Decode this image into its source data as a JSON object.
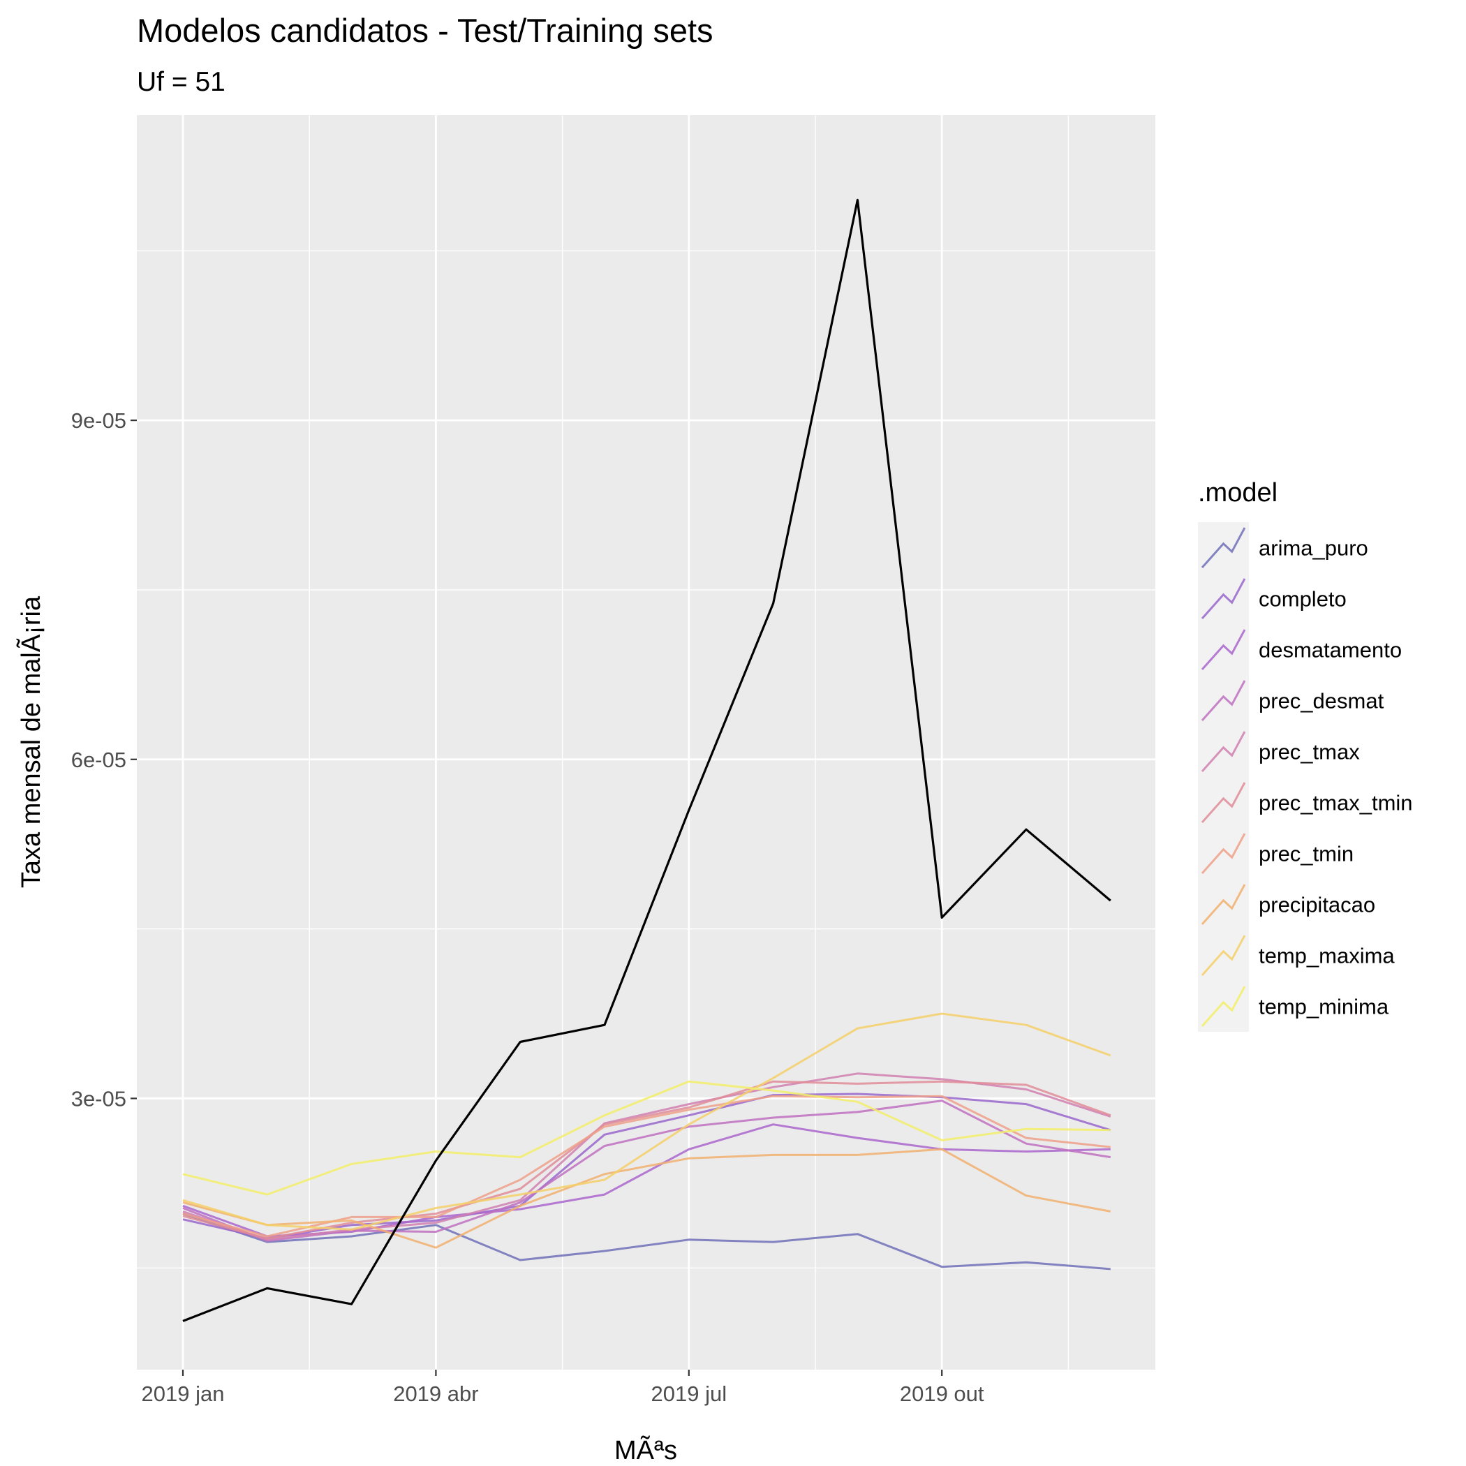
{
  "chart_data": {
    "type": "line",
    "title": "Modelos candidatos - Test/Training sets",
    "subtitle": "Uf = 51",
    "xlabel": "MÃªs",
    "ylabel": "Taxa mensal de malÃ¡ria",
    "x": [
      "2019-01",
      "2019-02",
      "2019-03",
      "2019-04",
      "2019-05",
      "2019-06",
      "2019-07",
      "2019-08",
      "2019-09",
      "2019-10",
      "2019-11",
      "2019-12"
    ],
    "x_ticks": [
      {
        "label": "2019 jan",
        "index": 0
      },
      {
        "label": "2019 abr",
        "index": 3
      },
      {
        "label": "2019 jul",
        "index": 6
      },
      {
        "label": "2019 out",
        "index": 9
      }
    ],
    "y_ticks": [
      {
        "label": "3e-05",
        "value": 3e-05
      },
      {
        "label": "6e-05",
        "value": 6e-05
      },
      {
        "label": "9e-05",
        "value": 9e-05
      }
    ],
    "ylim": [
      6e-06,
      0.000117
    ],
    "grid": true,
    "legend_title": ".model",
    "legend_position": "right",
    "actual": {
      "color": "#000000",
      "values": [
        1.03e-05,
        1.32e-05,
        1.18e-05,
        2.45e-05,
        3.5e-05,
        3.65e-05,
        5.55e-05,
        7.38e-05,
        0.0001095,
        4.6e-05,
        5.38e-05,
        4.75e-05
      ]
    },
    "series": [
      {
        "name": "arima_puro",
        "color": "#7070b8",
        "values": [
          1.98e-05,
          1.73e-05,
          1.78e-05,
          1.88e-05,
          1.57e-05,
          1.65e-05,
          1.75e-05,
          1.73e-05,
          1.8e-05,
          1.51e-05,
          1.55e-05,
          1.49e-05
        ]
      },
      {
        "name": "completo",
        "color": "#9966cc",
        "values": [
          1.93e-05,
          1.76e-05,
          1.88e-05,
          1.92e-05,
          2.05e-05,
          2.68e-05,
          2.85e-05,
          3.03e-05,
          3.04e-05,
          3.01e-05,
          2.95e-05,
          2.72e-05
        ]
      },
      {
        "name": "desmatamento",
        "color": "#aa66cc",
        "values": [
          2.05e-05,
          1.78e-05,
          1.82e-05,
          1.95e-05,
          2.02e-05,
          2.15e-05,
          2.55e-05,
          2.77e-05,
          2.65e-05,
          2.55e-05,
          2.53e-05,
          2.55e-05
        ]
      },
      {
        "name": "prec_desmat",
        "color": "#c070c0",
        "values": [
          2.03e-05,
          1.74e-05,
          1.83e-05,
          1.82e-05,
          2.08e-05,
          2.58e-05,
          2.75e-05,
          2.83e-05,
          2.88e-05,
          2.98e-05,
          2.6e-05,
          2.48e-05
        ]
      },
      {
        "name": "prec_tmax",
        "color": "#d080b0",
        "values": [
          2e-05,
          1.75e-05,
          1.84e-05,
          1.9e-05,
          2.1e-05,
          2.78e-05,
          2.95e-05,
          3.1e-05,
          3.22e-05,
          3.17e-05,
          3.08e-05,
          2.84e-05
        ]
      },
      {
        "name": "prec_tmax_tmin",
        "color": "#e08c98",
        "values": [
          1.96e-05,
          1.76e-05,
          1.9e-05,
          1.98e-05,
          2.2e-05,
          2.77e-05,
          2.92e-05,
          3.15e-05,
          3.13e-05,
          3.15e-05,
          3.12e-05,
          2.85e-05
        ]
      },
      {
        "name": "prec_tmin",
        "color": "#eea088",
        "values": [
          1.98e-05,
          1.78e-05,
          1.95e-05,
          1.95e-05,
          2.28e-05,
          2.75e-05,
          2.9e-05,
          3.02e-05,
          3.01e-05,
          3.02e-05,
          2.65e-05,
          2.57e-05
        ]
      },
      {
        "name": "precipitacao",
        "color": "#f2b070",
        "values": [
          2.08e-05,
          1.88e-05,
          1.92e-05,
          1.68e-05,
          2.05e-05,
          2.33e-05,
          2.47e-05,
          2.5e-05,
          2.5e-05,
          2.55e-05,
          2.14e-05,
          2e-05
        ]
      },
      {
        "name": "temp_maxima",
        "color": "#f5d06a",
        "values": [
          2.1e-05,
          1.88e-05,
          1.84e-05,
          2.03e-05,
          2.15e-05,
          2.28e-05,
          2.77e-05,
          3.18e-05,
          3.62e-05,
          3.75e-05,
          3.65e-05,
          3.38e-05
        ]
      },
      {
        "name": "temp_minima",
        "color": "#f2ef68",
        "values": [
          2.33e-05,
          2.15e-05,
          2.42e-05,
          2.53e-05,
          2.48e-05,
          2.85e-05,
          3.15e-05,
          3.07e-05,
          2.97e-05,
          2.63e-05,
          2.73e-05,
          2.72e-05
        ]
      }
    ]
  }
}
